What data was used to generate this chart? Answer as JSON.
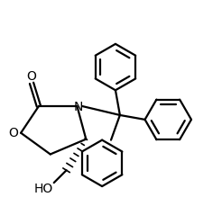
{
  "background_color": "#ffffff",
  "line_color": "#000000",
  "line_width": 1.6,
  "figsize": [
    2.46,
    2.49
  ],
  "dpi": 100,
  "xlim": [
    0,
    246
  ],
  "ylim": [
    0,
    249
  ]
}
